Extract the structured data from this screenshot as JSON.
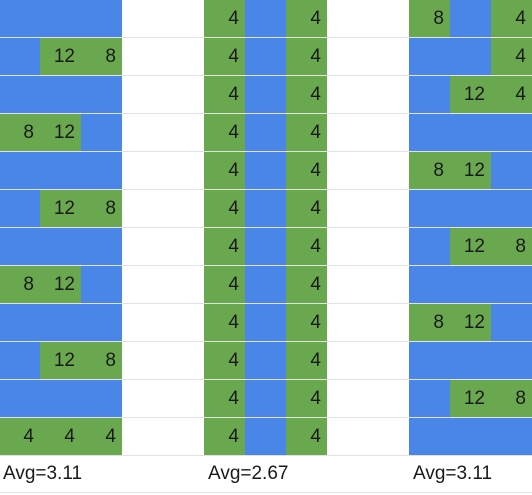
{
  "colors": {
    "G": "#6aa84f",
    "B": "#4a86e8",
    "W": "#ffffff",
    "grid": "#e2e2e2",
    "text": "#1a1a1a"
  },
  "grid": {
    "fills": [
      "BBBWWGBGWWGBG",
      "BGGWWGBGWWBBG",
      "BBBWWGBGWWBGG",
      "GGBWWGBGWWBBB",
      "BBBWWGBGWWGGB",
      "BGGWWGBGWWBBB",
      "BBBWWGBGWWBGG",
      "GGBWWGBGWWBBB",
      "BBBWWGBGWWGGB",
      "BGGWWGBGWWBBB",
      "BBBWWGBGWWBGG",
      "GGGWWGBGWWBBB"
    ],
    "values": [
      [
        "",
        "",
        "",
        "",
        "",
        "4",
        "",
        "4",
        "",
        "",
        "8",
        "",
        "4"
      ],
      [
        "",
        "12",
        "8",
        "",
        "",
        "4",
        "",
        "4",
        "",
        "",
        "",
        "",
        "4"
      ],
      [
        "",
        "",
        "",
        "",
        "",
        "4",
        "",
        "4",
        "",
        "",
        "",
        "12",
        "4"
      ],
      [
        "8",
        "12",
        "",
        "",
        "",
        "4",
        "",
        "4",
        "",
        "",
        "",
        "",
        ""
      ],
      [
        "",
        "",
        "",
        "",
        "",
        "4",
        "",
        "4",
        "",
        "",
        "8",
        "12",
        ""
      ],
      [
        "",
        "12",
        "8",
        "",
        "",
        "4",
        "",
        "4",
        "",
        "",
        "",
        "",
        ""
      ],
      [
        "",
        "",
        "",
        "",
        "",
        "4",
        "",
        "4",
        "",
        "",
        "",
        "12",
        "8"
      ],
      [
        "8",
        "12",
        "",
        "",
        "",
        "4",
        "",
        "4",
        "",
        "",
        "",
        "",
        ""
      ],
      [
        "",
        "",
        "",
        "",
        "",
        "4",
        "",
        "4",
        "",
        "",
        "8",
        "12",
        ""
      ],
      [
        "",
        "12",
        "8",
        "",
        "",
        "4",
        "",
        "4",
        "",
        "",
        "",
        "",
        ""
      ],
      [
        "",
        "",
        "",
        "",
        "",
        "4",
        "",
        "4",
        "",
        "",
        "",
        "12",
        "8"
      ],
      [
        "4",
        "4",
        "4",
        "",
        "",
        "4",
        "",
        "4",
        "",
        "",
        "",
        "",
        ""
      ]
    ]
  },
  "averages": [
    {
      "col": 0,
      "label": "Avg=3.11"
    },
    {
      "col": 5,
      "label": "Avg=2.67"
    },
    {
      "col": 10,
      "label": "Avg=3.11"
    }
  ]
}
